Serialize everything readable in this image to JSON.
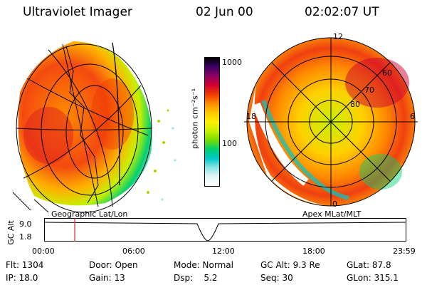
{
  "header": {
    "title": "Ultraviolet Imager",
    "date": "02 Jun 00",
    "time": "02:02:07 UT"
  },
  "colorbar": {
    "unit_label": "photon cm⁻²s⁻¹",
    "ticks": [
      "1000",
      "100"
    ],
    "colors": [
      "#000000",
      "#3b0066",
      "#8f0064",
      "#d00030",
      "#f03a00",
      "#ff8a00",
      "#ffc800",
      "#fff000",
      "#c8f000",
      "#78dc00",
      "#00d070",
      "#00c8c8",
      "#8ce6e6",
      "#e6f5f5",
      "#ffffff"
    ]
  },
  "left_panel": {
    "label": "Geographic Lat/Lon"
  },
  "right_panel": {
    "label": "Apex MLat/MLT",
    "lat_labels": [
      "60",
      "70",
      "80"
    ],
    "mlt_labels": {
      "top": "12",
      "left": "18",
      "right": "6",
      "bottom": "0"
    }
  },
  "altitude_plot": {
    "ylabel": "GC Alt",
    "ytick_top": "9.0",
    "ytick_bottom": "1.8",
    "xticks": [
      "00:00",
      "06:00",
      "12:00",
      "18:00",
      "23:59"
    ],
    "marker_time": "02:02"
  },
  "footer": [
    [
      "Flt: 1304",
      "Door: Open",
      "Mode: Normal",
      "GC Alt: 9.3 Re",
      "GLat: 87.8"
    ],
    [
      "IP: 18.0",
      "Gain: 13",
      "Dsp:    5.2",
      "Seq: 30",
      "GLon: 315.1"
    ]
  ]
}
